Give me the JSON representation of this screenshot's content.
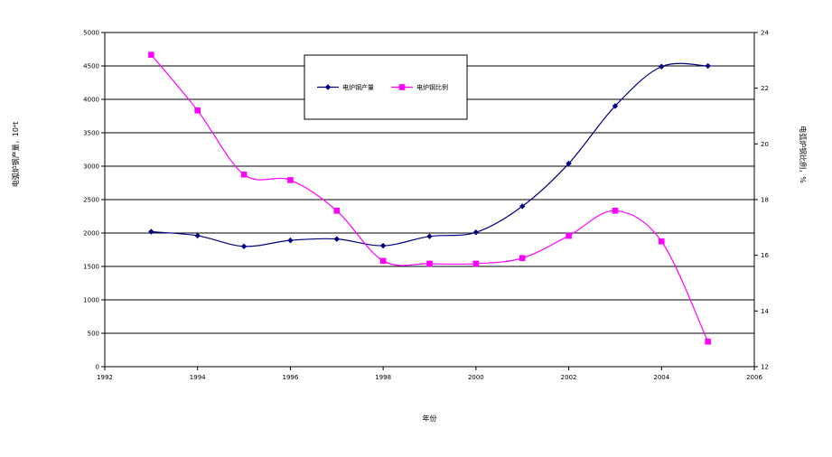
{
  "chart_data": {
    "type": "line",
    "xlabel": "年份",
    "ylabel_left": "电弧炉钢产量，10⁴t",
    "ylabel_right": "电弧炉钢比例，%",
    "xlim": [
      1992,
      2006
    ],
    "xticks": [
      1992,
      1994,
      1996,
      1998,
      2000,
      2002,
      2004,
      2006
    ],
    "ylim_left": [
      0,
      5000
    ],
    "yticks_left": [
      0,
      500,
      1000,
      1500,
      2000,
      2500,
      3000,
      3500,
      4000,
      4500,
      5000
    ],
    "ylim_right": [
      12,
      24
    ],
    "yticks_right": [
      12,
      14,
      16,
      18,
      20,
      22,
      24
    ],
    "grid": "horizontal",
    "legend_position": "top-center",
    "series": [
      {
        "name": "电炉钢产量",
        "axis": "left",
        "color": "#000080",
        "marker": "diamond",
        "x": [
          1993,
          1994,
          1995,
          1996,
          1997,
          1998,
          1999,
          2000,
          2001,
          2002,
          2003,
          2004,
          2005
        ],
        "values": [
          2020,
          1960,
          1800,
          1890,
          1910,
          1810,
          1950,
          2010,
          2400,
          3040,
          3900,
          4490,
          4500
        ]
      },
      {
        "name": "电炉钢比例",
        "axis": "right",
        "color": "#ff00ff",
        "marker": "square",
        "x": [
          1993,
          1994,
          1995,
          1996,
          1997,
          1998,
          1999,
          2000,
          2001,
          2002,
          2003,
          2004,
          2005
        ],
        "values": [
          23.2,
          21.2,
          18.9,
          18.7,
          17.6,
          15.8,
          15.7,
          15.7,
          15.9,
          16.7,
          17.6,
          16.5,
          12.9
        ]
      }
    ]
  }
}
